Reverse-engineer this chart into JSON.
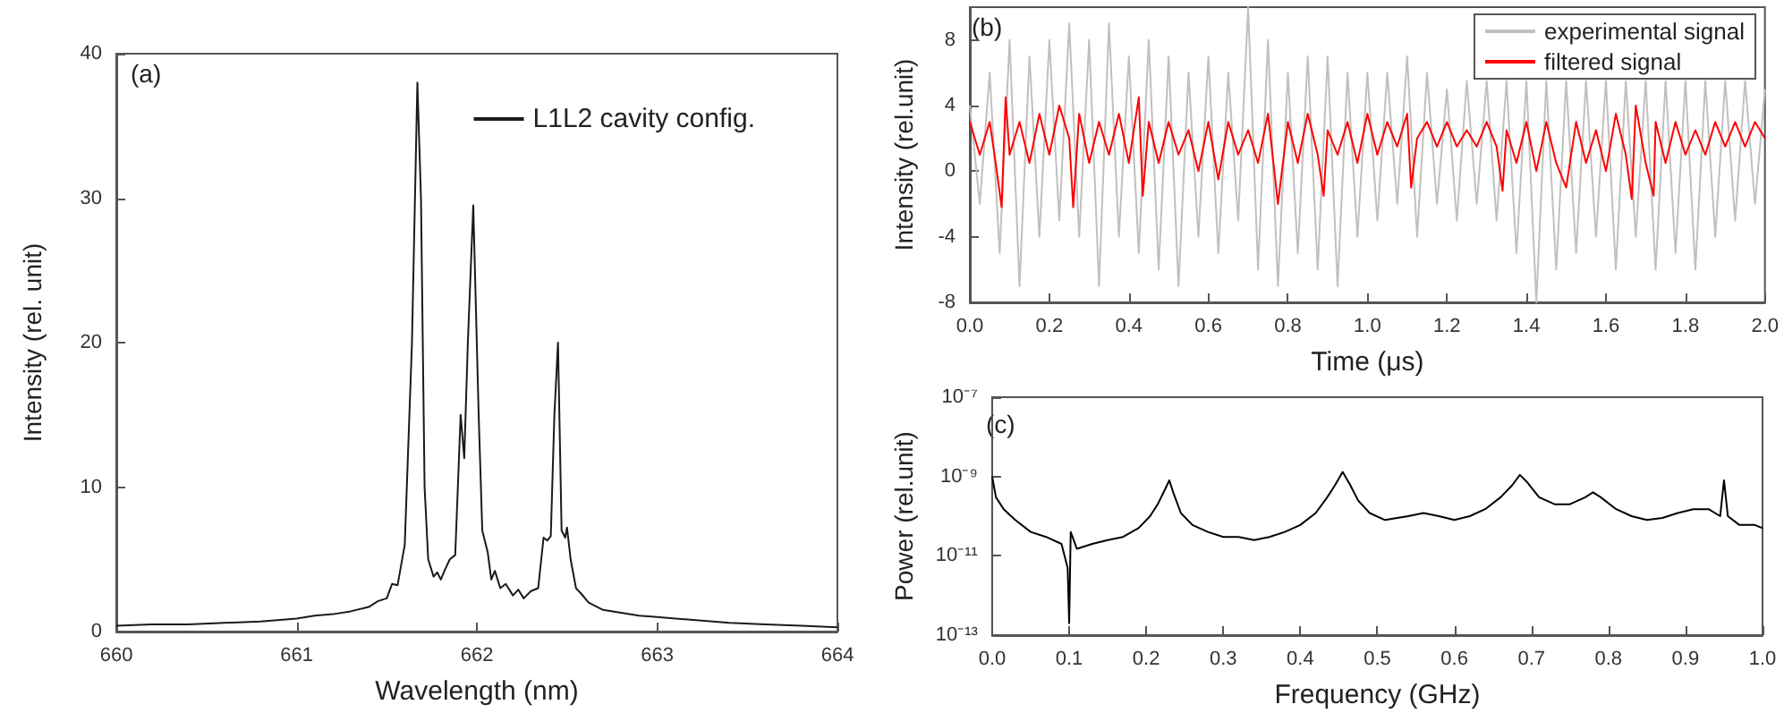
{
  "chart_data": [
    {
      "type": "line",
      "xlabel": "Wavelength (nm)",
      "ylabel": "Intensity (rel. unit)",
      "annotations": [
        "(a)"
      ],
      "legend": "top right",
      "xlim": [
        660,
        664
      ],
      "xticks": [
        660,
        661,
        662,
        663,
        664
      ],
      "ylim": [
        0,
        40
      ],
      "yticks": [
        0,
        10,
        20,
        30,
        40
      ],
      "series": [
        {
          "name": "L1L2 cavity config.",
          "color": "#1a1a1a",
          "x": [
            660,
            660.2,
            660.4,
            660.6,
            660.8,
            661,
            661.1,
            661.2,
            661.3,
            661.4,
            661.45,
            661.5,
            661.53,
            661.56,
            661.6,
            661.64,
            661.67,
            661.69,
            661.71,
            661.73,
            661.76,
            661.78,
            661.8,
            661.82,
            661.85,
            661.88,
            661.91,
            661.93,
            661.95,
            661.98,
            662.01,
            662.03,
            662.06,
            662.08,
            662.1,
            662.13,
            662.16,
            662.2,
            662.23,
            662.26,
            662.3,
            662.34,
            662.37,
            662.39,
            662.41,
            662.43,
            662.45,
            662.47,
            662.49,
            662.5,
            662.52,
            662.55,
            662.58,
            662.62,
            662.7,
            662.8,
            662.9,
            663,
            663.2,
            663.4,
            663.6,
            663.8,
            664
          ],
          "values": [
            0.4,
            0.5,
            0.5,
            0.6,
            0.7,
            0.9,
            1.1,
            1.2,
            1.4,
            1.7,
            2.1,
            2.3,
            3.3,
            3.2,
            6,
            20,
            38,
            30,
            10,
            5,
            3.8,
            4.1,
            3.6,
            4.2,
            5,
            5.3,
            15,
            12,
            20,
            29.5,
            15,
            7,
            5.5,
            3.6,
            4.2,
            3,
            3.3,
            2.5,
            2.9,
            2.3,
            2.8,
            3,
            6.5,
            6.3,
            6.6,
            15,
            20,
            7,
            6.5,
            7.2,
            5,
            3,
            2.6,
            2,
            1.5,
            1.3,
            1.1,
            1,
            0.8,
            0.6,
            0.5,
            0.4,
            0.3
          ]
        }
      ]
    },
    {
      "type": "line",
      "xlabel": "Time (μs)",
      "ylabel": "Intensity (rel.unit)",
      "annotations": [
        "(b)"
      ],
      "legend": "top right",
      "xlim": [
        0,
        2
      ],
      "xticks": [
        {
          "value": 0,
          "label": "0.0"
        },
        {
          "value": 0.2,
          "label": "0.2"
        },
        {
          "value": 0.4,
          "label": "0.4"
        },
        {
          "value": 0.6,
          "label": "0.6"
        },
        {
          "value": 0.8,
          "label": "0.8"
        },
        {
          "value": 1,
          "label": "1.0"
        },
        {
          "value": 1.2,
          "label": "1.2"
        },
        {
          "value": 1.4,
          "label": "1.4"
        },
        {
          "value": 1.6,
          "label": "1.6"
        },
        {
          "value": 1.8,
          "label": "1.8"
        },
        {
          "value": 2,
          "label": "2.0"
        }
      ],
      "ylim": [
        -8,
        10
      ],
      "yticks": [
        -8,
        -4,
        0,
        4,
        8
      ],
      "series": [
        {
          "name": "experimental signal",
          "color": "#c0c0c0",
          "x": [
            0,
            0.025,
            0.05,
            0.075,
            0.1,
            0.125,
            0.15,
            0.175,
            0.2,
            0.225,
            0.25,
            0.275,
            0.3,
            0.325,
            0.35,
            0.375,
            0.4,
            0.425,
            0.45,
            0.475,
            0.5,
            0.525,
            0.55,
            0.575,
            0.6,
            0.625,
            0.65,
            0.675,
            0.7,
            0.725,
            0.75,
            0.775,
            0.8,
            0.825,
            0.85,
            0.875,
            0.9,
            0.925,
            0.95,
            0.975,
            1,
            1.025,
            1.05,
            1.075,
            1.1,
            1.125,
            1.15,
            1.175,
            1.2,
            1.225,
            1.25,
            1.275,
            1.3,
            1.325,
            1.35,
            1.375,
            1.4,
            1.425,
            1.45,
            1.475,
            1.5,
            1.525,
            1.55,
            1.575,
            1.6,
            1.625,
            1.65,
            1.675,
            1.7,
            1.725,
            1.75,
            1.775,
            1.8,
            1.825,
            1.85,
            1.875,
            1.9,
            1.925,
            1.95,
            1.975,
            2
          ],
          "values": [
            4,
            -2,
            6,
            -5,
            8,
            -7,
            7,
            -4,
            8,
            -3,
            9,
            -4,
            8,
            -7,
            9,
            -4,
            7,
            -5,
            8,
            -6,
            7,
            -7,
            6,
            -4,
            7,
            -5,
            6,
            -3,
            10,
            -6,
            8,
            -7,
            6,
            -5,
            7,
            -6,
            7,
            -7,
            6,
            -4,
            6,
            -3,
            6,
            -2,
            7,
            -4,
            6,
            -2,
            5,
            -3,
            5.5,
            -2,
            5.5,
            -3,
            5.5,
            -5,
            5.5,
            -8,
            5.5,
            -6,
            5.5,
            -5,
            5.5,
            -4,
            5.5,
            -6,
            5.5,
            -4,
            5.5,
            -6,
            5.5,
            -5,
            5.5,
            -6,
            5.5,
            -4,
            5.5,
            -3,
            5.5,
            -2,
            5
          ]
        },
        {
          "name": "filtered signal",
          "color": "#ff0000",
          "x": [
            0,
            0.025,
            0.05,
            0.065,
            0.08,
            0.09,
            0.1,
            0.125,
            0.15,
            0.175,
            0.2,
            0.225,
            0.25,
            0.26,
            0.275,
            0.3,
            0.325,
            0.35,
            0.375,
            0.4,
            0.425,
            0.435,
            0.45,
            0.475,
            0.5,
            0.525,
            0.55,
            0.575,
            0.6,
            0.625,
            0.65,
            0.675,
            0.7,
            0.725,
            0.75,
            0.775,
            0.8,
            0.825,
            0.85,
            0.875,
            0.89,
            0.9,
            0.925,
            0.95,
            0.975,
            1,
            1.025,
            1.05,
            1.075,
            1.1,
            1.11,
            1.125,
            1.15,
            1.175,
            1.2,
            1.225,
            1.25,
            1.275,
            1.3,
            1.325,
            1.34,
            1.35,
            1.375,
            1.4,
            1.425,
            1.45,
            1.475,
            1.5,
            1.525,
            1.55,
            1.575,
            1.6,
            1.625,
            1.65,
            1.665,
            1.675,
            1.7,
            1.72,
            1.725,
            1.75,
            1.775,
            1.8,
            1.825,
            1.85,
            1.875,
            1.9,
            1.925,
            1.95,
            1.975,
            2
          ],
          "values": [
            3,
            1,
            3,
            0.5,
            -2.2,
            4.5,
            1,
            3,
            0.5,
            3.5,
            1,
            4,
            2,
            -2.2,
            3.5,
            0.5,
            3,
            1,
            3.5,
            0.5,
            4.5,
            -1.5,
            3,
            0.5,
            3,
            1,
            2.5,
            0,
            3,
            -0.5,
            3,
            1,
            2.5,
            0.5,
            3.5,
            -2,
            3,
            0.5,
            3.5,
            1,
            -1.5,
            2.5,
            1,
            3,
            0.5,
            3.5,
            1,
            3,
            1.5,
            3.5,
            -1,
            2,
            3,
            1.5,
            3,
            1.5,
            2.5,
            1.5,
            3,
            1.5,
            -1.2,
            2.5,
            0.5,
            3,
            0,
            3,
            0.5,
            -1,
            3,
            0.5,
            2.5,
            0,
            3.5,
            1,
            -1.7,
            4,
            0.5,
            -1.5,
            3,
            0.5,
            3,
            1,
            2.5,
            1,
            3,
            1.5,
            3,
            1.5,
            3,
            2
          ]
        }
      ]
    },
    {
      "type": "line",
      "xlabel": "Frequency (GHz)",
      "ylabel": "Power (rel.unit)",
      "annotations": [
        "(c)"
      ],
      "log": "y",
      "xlim": [
        0,
        1
      ],
      "xticks": [
        {
          "value": 0,
          "label": "0.0"
        },
        {
          "value": 0.1,
          "label": "0.1"
        },
        {
          "value": 0.2,
          "label": "0.2"
        },
        {
          "value": 0.3,
          "label": "0.3"
        },
        {
          "value": 0.4,
          "label": "0.4"
        },
        {
          "value": 0.5,
          "label": "0.5"
        },
        {
          "value": 0.6,
          "label": "0.6"
        },
        {
          "value": 0.7,
          "label": "0.7"
        },
        {
          "value": 0.8,
          "label": "0.8"
        },
        {
          "value": 0.9,
          "label": "0.9"
        },
        {
          "value": 1,
          "label": "1.0"
        }
      ],
      "ylim": [
        1e-13,
        1e-07
      ],
      "yticks": [
        {
          "value": 1e-13,
          "label": "10⁻¹³"
        },
        {
          "value": 1e-11,
          "label": "10⁻¹¹"
        },
        {
          "value": 1e-09,
          "label": "10⁻⁹"
        },
        {
          "value": 1e-07,
          "label": "10⁻⁷"
        }
      ],
      "series": [
        {
          "color": "#000000",
          "x": [
            0,
            0.005,
            0.015,
            0.03,
            0.05,
            0.07,
            0.09,
            0.098,
            0.1,
            0.102,
            0.11,
            0.13,
            0.15,
            0.17,
            0.19,
            0.205,
            0.215,
            0.225,
            0.23,
            0.235,
            0.245,
            0.26,
            0.28,
            0.3,
            0.32,
            0.34,
            0.36,
            0.38,
            0.4,
            0.42,
            0.435,
            0.445,
            0.455,
            0.465,
            0.475,
            0.49,
            0.51,
            0.54,
            0.56,
            0.58,
            0.6,
            0.62,
            0.64,
            0.66,
            0.675,
            0.685,
            0.695,
            0.71,
            0.73,
            0.75,
            0.77,
            0.78,
            0.79,
            0.81,
            0.83,
            0.85,
            0.87,
            0.89,
            0.91,
            0.93,
            0.945,
            0.95,
            0.955,
            0.97,
            0.99,
            1
          ],
          "values": [
            1e-09,
            3e-10,
            1.5e-10,
            8e-11,
            4e-11,
            3e-11,
            2e-11,
            5e-12,
            2e-13,
            4e-11,
            1.5e-11,
            2e-11,
            2.5e-11,
            3e-11,
            5e-11,
            1e-10,
            2e-10,
            5e-10,
            8e-10,
            4e-10,
            1.2e-10,
            6e-11,
            4e-11,
            3e-11,
            3e-11,
            2.5e-11,
            3e-11,
            4e-11,
            6e-11,
            1.2e-10,
            3e-10,
            6e-10,
            1.3e-09,
            6e-10,
            2.5e-10,
            1.2e-10,
            8e-11,
            1e-10,
            1.2e-10,
            1e-10,
            8e-11,
            1e-10,
            1.5e-10,
            3e-10,
            6e-10,
            1.1e-09,
            7e-10,
            3e-10,
            2e-10,
            2e-10,
            3e-10,
            4e-10,
            3e-10,
            1.5e-10,
            1e-10,
            8e-11,
            9e-11,
            1.2e-10,
            1.5e-10,
            1.5e-10,
            1e-10,
            8e-10,
            1e-10,
            6e-11,
            6e-11,
            5e-11
          ]
        }
      ]
    }
  ]
}
